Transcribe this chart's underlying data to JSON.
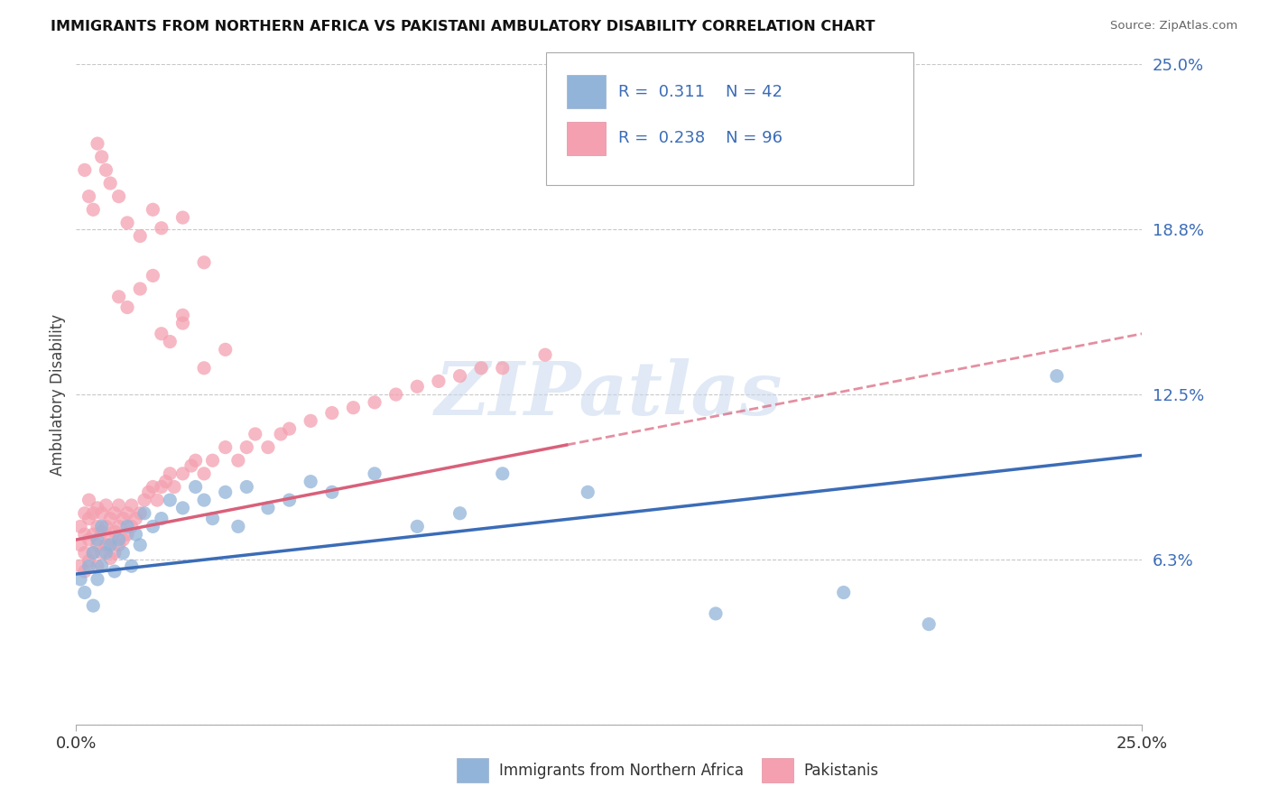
{
  "title": "IMMIGRANTS FROM NORTHERN AFRICA VS PAKISTANI AMBULATORY DISABILITY CORRELATION CHART",
  "source": "Source: ZipAtlas.com",
  "ylabel": "Ambulatory Disability",
  "xmin": 0.0,
  "xmax": 0.25,
  "ymin": 0.0,
  "ymax": 0.25,
  "yticks": [
    0.0,
    0.0625,
    0.125,
    0.1875,
    0.25
  ],
  "ytick_labels": [
    "",
    "6.3%",
    "12.5%",
    "18.8%",
    "25.0%"
  ],
  "legend_r_blue": "0.311",
  "legend_n_blue": "42",
  "legend_r_pink": "0.238",
  "legend_n_pink": "96",
  "blue_color": "#92B4D9",
  "pink_color": "#F4A0B0",
  "blue_line_color": "#3B6CB7",
  "pink_line_color": "#D9607A",
  "label_blue": "Immigrants from Northern Africa",
  "label_pink": "Pakistanis",
  "blue_scatter_x": [
    0.001,
    0.002,
    0.003,
    0.004,
    0.004,
    0.005,
    0.005,
    0.006,
    0.006,
    0.007,
    0.008,
    0.009,
    0.01,
    0.011,
    0.012,
    0.013,
    0.014,
    0.015,
    0.016,
    0.018,
    0.02,
    0.022,
    0.025,
    0.028,
    0.03,
    0.032,
    0.035,
    0.038,
    0.04,
    0.045,
    0.05,
    0.055,
    0.06,
    0.07,
    0.08,
    0.09,
    0.1,
    0.12,
    0.15,
    0.18,
    0.2,
    0.23
  ],
  "blue_scatter_y": [
    0.055,
    0.05,
    0.06,
    0.065,
    0.045,
    0.055,
    0.07,
    0.06,
    0.075,
    0.065,
    0.068,
    0.058,
    0.07,
    0.065,
    0.075,
    0.06,
    0.072,
    0.068,
    0.08,
    0.075,
    0.078,
    0.085,
    0.082,
    0.09,
    0.085,
    0.078,
    0.088,
    0.075,
    0.09,
    0.082,
    0.085,
    0.092,
    0.088,
    0.095,
    0.075,
    0.08,
    0.095,
    0.088,
    0.042,
    0.05,
    0.038,
    0.132
  ],
  "pink_scatter_x": [
    0.001,
    0.001,
    0.001,
    0.002,
    0.002,
    0.002,
    0.002,
    0.003,
    0.003,
    0.003,
    0.003,
    0.004,
    0.004,
    0.004,
    0.005,
    0.005,
    0.005,
    0.005,
    0.006,
    0.006,
    0.006,
    0.007,
    0.007,
    0.007,
    0.008,
    0.008,
    0.008,
    0.009,
    0.009,
    0.009,
    0.01,
    0.01,
    0.01,
    0.011,
    0.011,
    0.012,
    0.012,
    0.013,
    0.013,
    0.014,
    0.015,
    0.016,
    0.017,
    0.018,
    0.019,
    0.02,
    0.021,
    0.022,
    0.023,
    0.025,
    0.027,
    0.028,
    0.03,
    0.032,
    0.035,
    0.038,
    0.04,
    0.042,
    0.045,
    0.048,
    0.05,
    0.055,
    0.06,
    0.065,
    0.07,
    0.075,
    0.08,
    0.085,
    0.09,
    0.095,
    0.1,
    0.11,
    0.002,
    0.003,
    0.004,
    0.005,
    0.006,
    0.007,
    0.008,
    0.01,
    0.012,
    0.015,
    0.018,
    0.02,
    0.025,
    0.03,
    0.02,
    0.025,
    0.01,
    0.012,
    0.015,
    0.018,
    0.022,
    0.025,
    0.03,
    0.035
  ],
  "pink_scatter_y": [
    0.06,
    0.068,
    0.075,
    0.058,
    0.065,
    0.072,
    0.08,
    0.062,
    0.07,
    0.078,
    0.085,
    0.065,
    0.072,
    0.08,
    0.06,
    0.068,
    0.075,
    0.082,
    0.065,
    0.073,
    0.08,
    0.068,
    0.075,
    0.083,
    0.063,
    0.07,
    0.078,
    0.065,
    0.073,
    0.08,
    0.068,
    0.075,
    0.083,
    0.07,
    0.078,
    0.072,
    0.08,
    0.075,
    0.083,
    0.078,
    0.08,
    0.085,
    0.088,
    0.09,
    0.085,
    0.09,
    0.092,
    0.095,
    0.09,
    0.095,
    0.098,
    0.1,
    0.095,
    0.1,
    0.105,
    0.1,
    0.105,
    0.11,
    0.105,
    0.11,
    0.112,
    0.115,
    0.118,
    0.12,
    0.122,
    0.125,
    0.128,
    0.13,
    0.132,
    0.135,
    0.135,
    0.14,
    0.21,
    0.2,
    0.195,
    0.22,
    0.215,
    0.21,
    0.205,
    0.2,
    0.19,
    0.185,
    0.195,
    0.188,
    0.192,
    0.175,
    0.148,
    0.155,
    0.162,
    0.158,
    0.165,
    0.17,
    0.145,
    0.152,
    0.135,
    0.142
  ]
}
